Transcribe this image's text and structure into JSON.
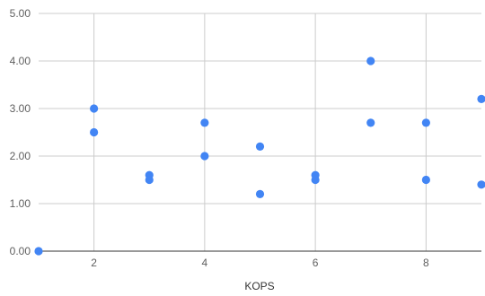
{
  "chart_data": {
    "type": "scatter",
    "title": "",
    "xlabel": "KOPS",
    "ylabel": "",
    "xlim": [
      1,
      9
    ],
    "ylim": [
      0,
      5
    ],
    "x_ticks": [
      2,
      4,
      6,
      8
    ],
    "x_tick_labels": [
      "2",
      "4",
      "6",
      "8"
    ],
    "y_ticks": [
      0,
      1,
      2,
      3,
      4,
      5
    ],
    "y_tick_labels": [
      "0.00",
      "1.00",
      "2.00",
      "3.00",
      "4.00",
      "5.00"
    ],
    "grid": true,
    "legend": "none",
    "series": [
      {
        "color": "#4285f4",
        "points": [
          {
            "x": 1,
            "y": 0.0
          },
          {
            "x": 2,
            "y": 3.0
          },
          {
            "x": 2,
            "y": 2.5
          },
          {
            "x": 3,
            "y": 1.6
          },
          {
            "x": 3,
            "y": 1.5
          },
          {
            "x": 4,
            "y": 2.7
          },
          {
            "x": 4,
            "y": 2.0
          },
          {
            "x": 5,
            "y": 2.2
          },
          {
            "x": 5,
            "y": 1.2
          },
          {
            "x": 6,
            "y": 1.6
          },
          {
            "x": 6,
            "y": 1.5
          },
          {
            "x": 7,
            "y": 4.0
          },
          {
            "x": 7,
            "y": 2.7
          },
          {
            "x": 8,
            "y": 2.7
          },
          {
            "x": 8,
            "y": 1.5
          },
          {
            "x": 9,
            "y": 3.2
          },
          {
            "x": 9,
            "y": 1.4
          }
        ]
      }
    ]
  }
}
